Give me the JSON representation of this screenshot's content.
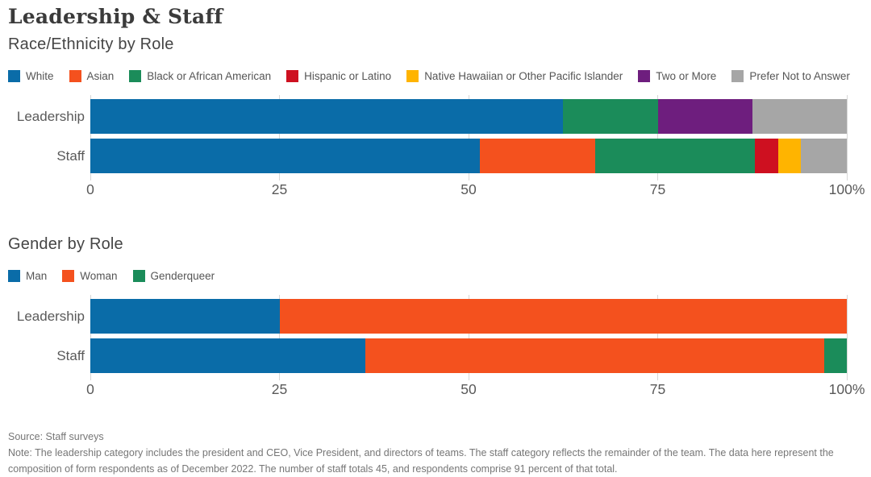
{
  "page": {
    "title": "Leadership & Staff",
    "source": "Source: Staff surveys",
    "note": "Note: The leadership category includes the president and CEO, Vice President, and directors of teams. The staff category reflects the remainder of the team. The data here represent the composition of form respondents as of December 2022. The number of staff totals 45, and respondents comprise 91 percent of that total."
  },
  "chart_data": [
    {
      "type": "bar",
      "subtype": "horizontal-stacked",
      "title": "Race/Ethnicity by Role",
      "categories": [
        "Leadership",
        "Staff"
      ],
      "series": [
        {
          "name": "White",
          "color": "#0a6ca8",
          "values": [
            62.5,
            51.5
          ]
        },
        {
          "name": "Asian",
          "color": "#f4511e",
          "values": [
            0,
            15.2
          ]
        },
        {
          "name": "Black or African American",
          "color": "#1b8c5a",
          "values": [
            12.5,
            21.2
          ]
        },
        {
          "name": "Hispanic or Latino",
          "color": "#ce1020",
          "values": [
            0,
            3.0
          ]
        },
        {
          "name": "Native Hawaiian or Other Pacific Islander",
          "color": "#ffb400",
          "values": [
            0,
            3.0
          ]
        },
        {
          "name": "Two or More",
          "color": "#6e1e7e",
          "values": [
            12.5,
            0
          ]
        },
        {
          "name": "Prefer Not to Answer",
          "color": "#a6a6a6",
          "values": [
            12.5,
            6.1
          ]
        }
      ],
      "xlim": [
        0,
        100
      ],
      "x_ticks": [
        "0",
        "25",
        "50",
        "75",
        "100%"
      ],
      "x_tick_values": [
        0,
        25,
        50,
        75,
        100
      ],
      "grid": true,
      "legend_position": "top"
    },
    {
      "type": "bar",
      "subtype": "horizontal-stacked",
      "title": "Gender by Role",
      "categories": [
        "Leadership",
        "Staff"
      ],
      "series": [
        {
          "name": "Man",
          "color": "#0a6ca8",
          "values": [
            25.0,
            36.4
          ]
        },
        {
          "name": "Woman",
          "color": "#f4511e",
          "values": [
            75.0,
            60.6
          ]
        },
        {
          "name": "Genderqueer",
          "color": "#1b8c5a",
          "values": [
            0,
            3.0
          ]
        }
      ],
      "xlim": [
        0,
        100
      ],
      "x_ticks": [
        "0",
        "25",
        "50",
        "75",
        "100%"
      ],
      "x_tick_values": [
        0,
        25,
        50,
        75,
        100
      ],
      "grid": true,
      "legend_position": "top"
    }
  ]
}
